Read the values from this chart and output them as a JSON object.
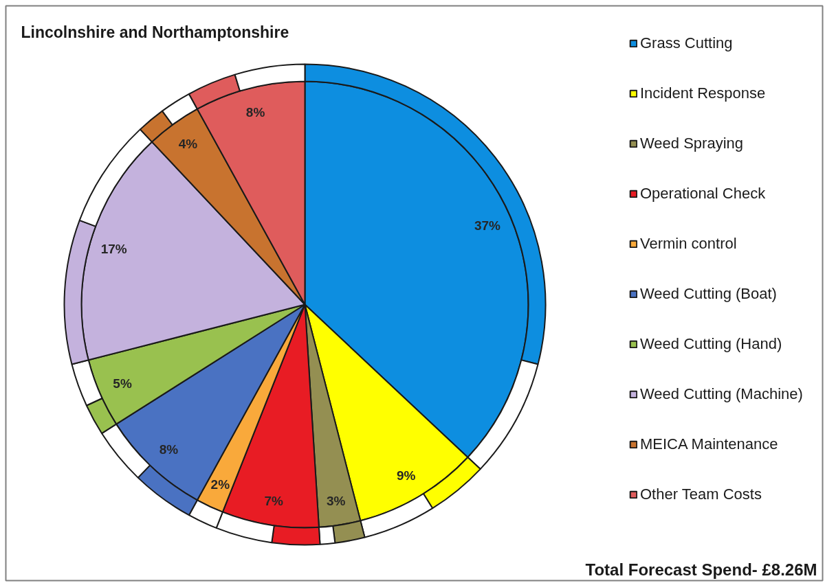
{
  "chart_data": {
    "type": "pie",
    "title": "Lincolnshire and Northamptonshire",
    "categories": [
      "Grass Cutting",
      null,
      "Incident Response",
      null,
      "Weed Spraying",
      null,
      "Operational Check",
      null,
      "Vermin control",
      null,
      "Weed Cutting (Boat)",
      null,
      "Weed Cutting (Hand)",
      null,
      "Weed Cutting (Machine)",
      null,
      "MEICA Maintenance",
      null,
      "Other Team Costs",
      null
    ],
    "colors": [
      "#0d8ee0",
      "#ffffff",
      "#ffff00",
      "#ffffff",
      "#948f52",
      "#ffffff",
      "#e81c24",
      "#ffffff",
      "#f9a93b",
      "#ffffff",
      "#4a72c2",
      "#ffffff",
      "#99c14f",
      "#ffffff",
      "#c4b2dd",
      "#ffffff",
      "#c8732f",
      "#ffffff",
      "#df5c5c",
      "#ffffff"
    ],
    "series": [
      {
        "values": [
          37,
          0,
          9,
          0,
          3,
          0,
          7,
          0,
          2,
          0,
          8,
          0,
          5,
          0,
          17,
          0,
          4,
          0,
          8,
          0
        ],
        "value_labels": [
          "37%",
          null,
          "9%",
          null,
          "3%",
          null,
          "7%",
          null,
          "2%",
          null,
          "8%",
          null,
          "5%",
          null,
          "17%",
          null,
          "4%",
          null,
          "8%",
          null
        ]
      },
      {
        "type": "donut",
        "values": [
          29,
          8,
          4.1,
          4.9,
          2,
          1,
          3.2,
          3.8,
          0,
          2,
          4.2,
          3.8,
          2.1,
          2.9,
          9.7,
          7.3,
          1.9,
          2.1,
          3.3,
          4.7
        ]
      }
    ],
    "legend": "right",
    "annotations": [
      "Total Forecast Spend- £8.26M"
    ]
  }
}
